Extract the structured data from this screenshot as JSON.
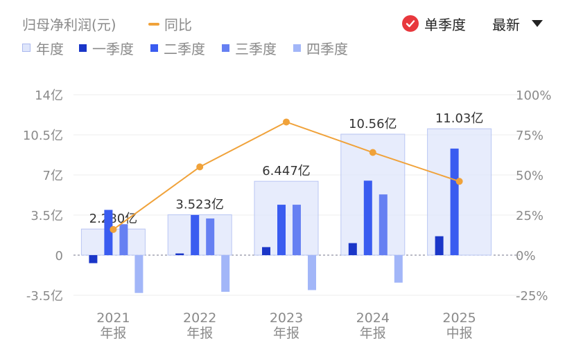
{
  "header": {
    "metric_label": "归母净利润(元)",
    "yoy_label": "同比",
    "single_quarter_label": "单季度",
    "latest_label": "最新"
  },
  "legend": [
    {
      "name": "年度",
      "color": "#dfe6fb"
    },
    {
      "name": "一季度",
      "color": "#1a36c8"
    },
    {
      "name": "二季度",
      "color": "#3a5cf0"
    },
    {
      "name": "三季度",
      "color": "#6680f2"
    },
    {
      "name": "四季度",
      "color": "#a2b6f8"
    }
  ],
  "colors": {
    "annual": "#dfe6fb",
    "annual_border": "#b9c6f3",
    "q1": "#1a36c8",
    "q2": "#3a5cf0",
    "q3": "#6680f2",
    "q4": "#a2b6f8",
    "yoy": "#f0a23a",
    "check": "#e8383d"
  },
  "chart_data": {
    "type": "bar",
    "categories": [
      "2021",
      "2022",
      "2023",
      "2024",
      "2025"
    ],
    "category_sublabels": [
      "年报",
      "年报",
      "年报",
      "年报",
      "中报"
    ],
    "annual": {
      "values": [
        2.28,
        3.523,
        6.447,
        10.56,
        11.03
      ],
      "labels": [
        "2.280亿",
        "3.523亿",
        "6.447亿",
        "10.56亿",
        "11.03亿"
      ]
    },
    "series": [
      {
        "name": "一季度",
        "values": [
          -0.7,
          0.15,
          0.7,
          1.05,
          1.65
        ]
      },
      {
        "name": "二季度",
        "values": [
          3.95,
          3.5,
          4.4,
          6.5,
          9.3
        ]
      },
      {
        "name": "三季度",
        "values": [
          2.7,
          3.2,
          4.4,
          5.3,
          null
        ]
      },
      {
        "name": "四季度",
        "values": [
          -3.3,
          -3.2,
          -3.05,
          -2.4,
          null
        ]
      }
    ],
    "yoy": {
      "name": "同比",
      "values": [
        16,
        55,
        83,
        64,
        46
      ]
    },
    "y_left": {
      "min": -3.5,
      "max": 14,
      "ticks": [
        14,
        10.5,
        7,
        3.5,
        0,
        -3.5
      ],
      "tick_labels": [
        "14亿",
        "10.5亿",
        "7亿",
        "3.5亿",
        "0",
        "-3.5亿"
      ]
    },
    "y_right": {
      "min": -25,
      "max": 100,
      "ticks": [
        100,
        75,
        50,
        25,
        0,
        -25
      ],
      "tick_labels": [
        "100%",
        "75%",
        "50%",
        "25%",
        "0%",
        "-25%"
      ]
    }
  }
}
